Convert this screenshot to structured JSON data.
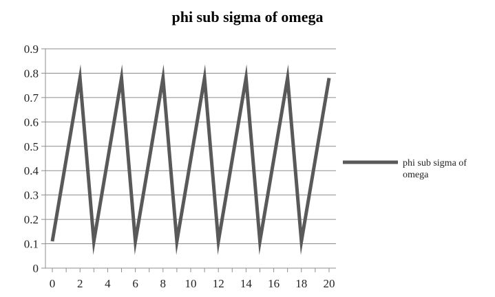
{
  "chart_data": {
    "type": "line",
    "title": "phi sub sigma of omega",
    "xlabel": "",
    "ylabel": "",
    "xlim": [
      -0.5,
      20.5
    ],
    "ylim": [
      0,
      0.9
    ],
    "x_ticks": [
      "0",
      "2",
      "4",
      "6",
      "8",
      "10",
      "12",
      "14",
      "16",
      "18",
      "20"
    ],
    "y_ticks": [
      "0",
      "0.1",
      "0.2",
      "0.3",
      "0.4",
      "0.5",
      "0.6",
      "0.7",
      "0.8",
      "0.9"
    ],
    "grid": "horizontal",
    "legend_position": "right",
    "series": [
      {
        "name": "phi sub sigma of omega",
        "color": "#595959",
        "x": [
          0,
          2,
          3,
          5,
          6,
          8,
          9,
          11,
          12,
          14,
          15,
          17,
          18,
          20
        ],
        "y": [
          0.11,
          0.78,
          0.11,
          0.78,
          0.11,
          0.78,
          0.11,
          0.78,
          0.11,
          0.78,
          0.11,
          0.78,
          0.11,
          0.78
        ]
      }
    ]
  }
}
